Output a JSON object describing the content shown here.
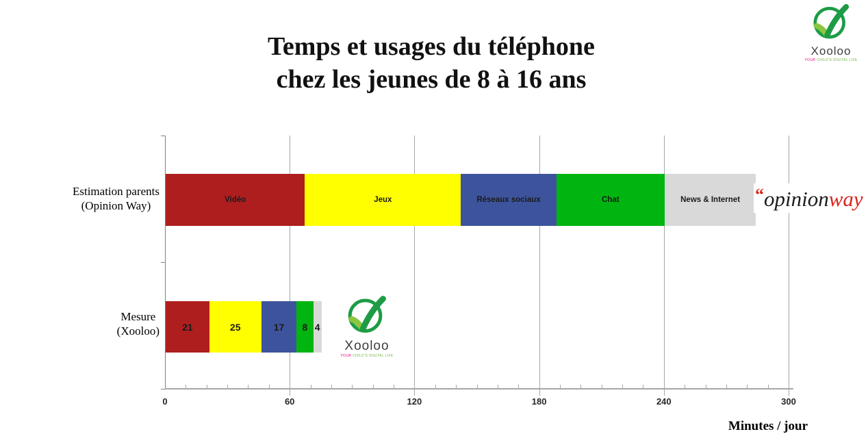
{
  "title": {
    "line1": "Temps et usages du téléphone",
    "line2": "chez les jeunes de 8 à 16 ans"
  },
  "chart_data": {
    "type": "bar",
    "stacked": true,
    "orientation": "horizontal",
    "title": "Temps et usages du téléphone chez les jeunes de 8 à 16 ans",
    "xlabel": "Minutes / jour",
    "xlim": [
      0,
      300
    ],
    "x_ticks": [
      0,
      60,
      120,
      180,
      240,
      300
    ],
    "x_minor_step": 10,
    "gridlines": true,
    "categories": [
      {
        "line1": "Estimation parents",
        "line2": "(Opinion Way)",
        "segment_label": "name"
      },
      {
        "line1": "Mesure",
        "line2": "(Xooloo)",
        "segment_label": "value"
      }
    ],
    "series": [
      {
        "name": "Vidéo",
        "color": "#AE1E1E",
        "values": [
          67,
          21
        ]
      },
      {
        "name": "Jeux",
        "color": "#FFFF00",
        "values": [
          75,
          25
        ]
      },
      {
        "name": "Réseaux sociaux",
        "color": "#3D549C",
        "values": [
          46,
          17
        ]
      },
      {
        "name": "Chat",
        "color": "#00B50F",
        "values": [
          52,
          8
        ]
      },
      {
        "name": "News & Internet",
        "color": "#D9D9D9",
        "values": [
          44,
          4
        ]
      }
    ]
  },
  "logos": {
    "opinionway": {
      "quote": "“",
      "part1": "opinion",
      "part2": "way"
    },
    "xooloo": {
      "name": "Xooloo",
      "tagline_part1": "YOUR",
      "tagline_part2": " CHILD'S DIGITAL LIFE"
    }
  },
  "colors": {
    "gridline": "#A6A6A6",
    "axis": "#808080",
    "opinionway_red": "#D9251C",
    "xooloo_green": "#1D9C45",
    "xooloo_light_green": "#8CC63E",
    "xooloo_pink": "#E5007D"
  }
}
